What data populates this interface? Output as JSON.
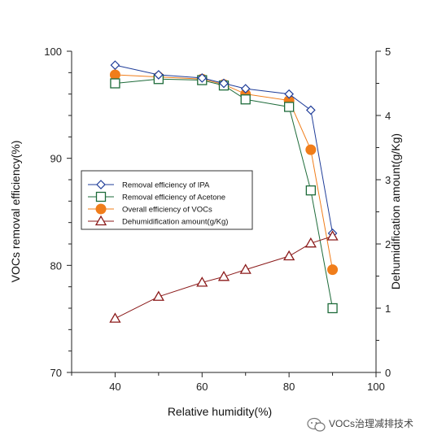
{
  "chart_data": {
    "type": "line",
    "xlabel": "Relative humidity(%)",
    "ylabel": "VOCs removal efficiency(%)",
    "y2label": "Dehumidification amount(g/Kg)",
    "xlim": [
      30,
      100
    ],
    "ylim": [
      70,
      100
    ],
    "y2lim": [
      0,
      5
    ],
    "x_ticks": [
      40,
      60,
      80,
      100
    ],
    "y_ticks": [
      70,
      80,
      90,
      100
    ],
    "y2_ticks": [
      0,
      1,
      2,
      3,
      4,
      5
    ],
    "grid": false,
    "legend_position": "center-left",
    "series": [
      {
        "name": "Removal efficiency of IPA",
        "axis": "left",
        "marker": "diamond",
        "color": "#1f3d99",
        "x": [
          40,
          50,
          60,
          65,
          70,
          80,
          85,
          90
        ],
        "values": [
          98.7,
          97.8,
          97.5,
          97.0,
          96.5,
          96.0,
          94.5,
          83.0
        ]
      },
      {
        "name": "Removal efficiency of Acetone",
        "axis": "left",
        "marker": "square",
        "color": "#1e6b3a",
        "x": [
          40,
          50,
          60,
          65,
          70,
          80,
          85,
          90
        ],
        "values": [
          97.0,
          97.4,
          97.3,
          96.8,
          95.5,
          94.8,
          87.0,
          76.0
        ]
      },
      {
        "name": "Overall efficiency of VOCs",
        "axis": "left",
        "marker": "circle",
        "color": "#f07d1a",
        "x": [
          40,
          50,
          60,
          65,
          70,
          80,
          85,
          90
        ],
        "values": [
          97.8,
          97.6,
          97.4,
          96.9,
          96.0,
          95.4,
          90.8,
          79.6
        ]
      },
      {
        "name": "Dehumidification amount(g/Kg)",
        "axis": "right",
        "marker": "triangle",
        "color": "#8b1a1a",
        "x": [
          40,
          50,
          60,
          65,
          70,
          80,
          85,
          90
        ],
        "values": [
          0.84,
          1.18,
          1.4,
          1.49,
          1.6,
          1.81,
          2.01,
          2.12
        ]
      }
    ]
  },
  "watermark": {
    "text": "VOCs治理减排技术",
    "icon": "wechat-icon"
  }
}
